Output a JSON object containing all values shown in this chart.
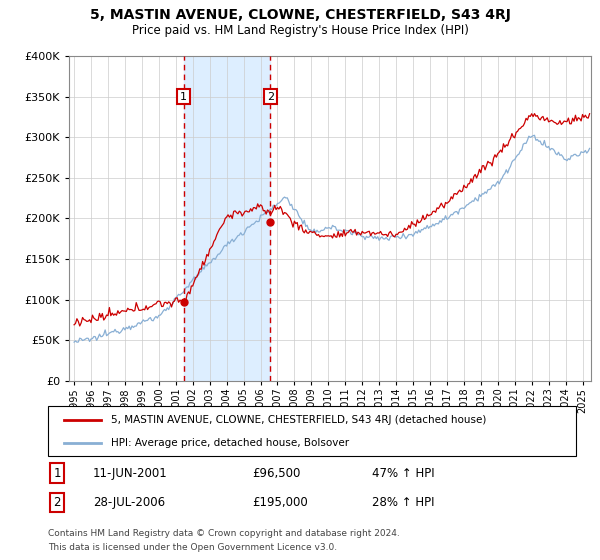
{
  "title": "5, MASTIN AVENUE, CLOWNE, CHESTERFIELD, S43 4RJ",
  "subtitle": "Price paid vs. HM Land Registry's House Price Index (HPI)",
  "legend_line1": "5, MASTIN AVENUE, CLOWNE, CHESTERFIELD, S43 4RJ (detached house)",
  "legend_line2": "HPI: Average price, detached house, Bolsover",
  "sale1_label": "1",
  "sale1_date": "11-JUN-2001",
  "sale1_price": "£96,500",
  "sale1_pct": "47% ↑ HPI",
  "sale1_year": 2001.458,
  "sale1_price_val": 96500,
  "sale2_label": "2",
  "sale2_date": "28-JUL-2006",
  "sale2_price": "£195,000",
  "sale2_pct": "28% ↑ HPI",
  "sale2_year": 2006.583,
  "sale2_price_val": 195000,
  "footer_line1": "Contains HM Land Registry data © Crown copyright and database right 2024.",
  "footer_line2": "This data is licensed under the Open Government Licence v3.0.",
  "property_color": "#cc0000",
  "hpi_color": "#89afd4",
  "highlight_color": "#ddeeff",
  "box_color": "#cc0000",
  "ylim": [
    0,
    400000
  ],
  "yticks": [
    0,
    50000,
    100000,
    150000,
    200000,
    250000,
    300000,
    350000,
    400000
  ],
  "xlim_left": 1994.7,
  "xlim_right": 2025.5
}
